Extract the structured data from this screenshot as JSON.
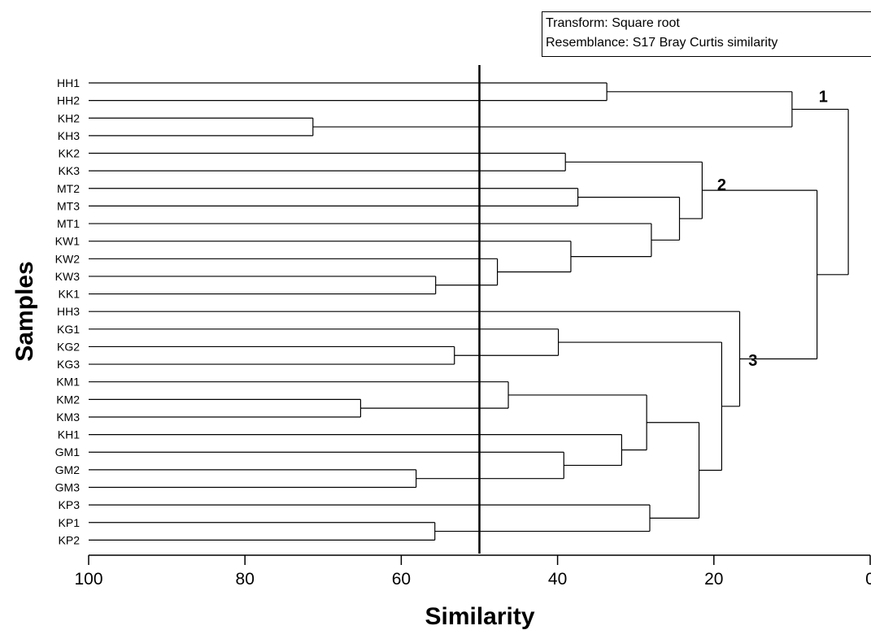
{
  "legend": {
    "transform": "Transform: Square root",
    "resemblance": "Resemblance: S17 Bray Curtis similarity"
  },
  "chart_data": {
    "type": "dendrogram",
    "xlabel": "Similarity",
    "ylabel": "Samples",
    "xlim": [
      100,
      0
    ],
    "xticks": [
      100,
      80,
      60,
      40,
      20,
      0
    ],
    "cut_line": 50,
    "leaves": [
      "HH1",
      "HH2",
      "KH2",
      "KH3",
      "KK2",
      "KK3",
      "MT2",
      "MT3",
      "MT1",
      "KW1",
      "KW2",
      "KW3",
      "KK1",
      "HH3",
      "KG1",
      "KG2",
      "KG3",
      "KM1",
      "KM2",
      "KM3",
      "KH1",
      "GM1",
      "GM2",
      "GM3",
      "KP3",
      "KP1",
      "KP2"
    ],
    "merges": [
      {
        "a": "HH1",
        "b": "HH2",
        "similarity": 33.7
      },
      {
        "a": "KH2",
        "b": "KH3",
        "similarity": 71.3
      },
      {
        "a": "HH1+HH2",
        "b": "KH2+KH3",
        "similarity": 10.0
      },
      {
        "a": "KK2",
        "b": "KK3",
        "similarity": 39.0
      },
      {
        "a": "MT2",
        "b": "MT3",
        "similarity": 37.4
      },
      {
        "a": "KW3",
        "b": "KK1",
        "similarity": 55.6
      },
      {
        "a": "KW2",
        "b": "KW3+KK1",
        "similarity": 47.7
      },
      {
        "a": "KW1",
        "b": "KW2+KW3+KK1",
        "similarity": 38.3
      },
      {
        "a": "MT1",
        "b": "KW1+KW2+KW3+KK1",
        "similarity": 28.0
      },
      {
        "a": "MT2+MT3",
        "b": "MT1+KW1+KW2+KW3+KK1",
        "similarity": 24.4
      },
      {
        "a": "KK2+KK3",
        "b": "MT2..KK1",
        "similarity": 21.5
      },
      {
        "a": "KG2",
        "b": "KG3",
        "similarity": 53.2
      },
      {
        "a": "KG1",
        "b": "KG2+KG3",
        "similarity": 39.9
      },
      {
        "a": "KM2",
        "b": "KM3",
        "similarity": 65.2
      },
      {
        "a": "KM1",
        "b": "KM2+KM3",
        "similarity": 46.3
      },
      {
        "a": "GM2",
        "b": "GM3",
        "similarity": 58.1
      },
      {
        "a": "GM1",
        "b": "GM2+GM3",
        "similarity": 39.2
      },
      {
        "a": "KH1",
        "b": "GM1+GM2+GM3",
        "similarity": 31.8
      },
      {
        "a": "KM1+KM2+KM3",
        "b": "KH1+GM1+GM2+GM3",
        "similarity": 28.6
      },
      {
        "a": "KP1",
        "b": "KP2",
        "similarity": 55.7
      },
      {
        "a": "KP3",
        "b": "KP1+KP2",
        "similarity": 28.2
      },
      {
        "a": "KM1..GM3",
        "b": "KP3+KP1+KP2",
        "similarity": 21.9
      },
      {
        "a": "KG1+KG2+KG3",
        "b": "KM1..KP2",
        "similarity": 19.0
      },
      {
        "a": "HH3",
        "b": "KG1..KP2",
        "similarity": 16.7
      },
      {
        "a": "KK2..KK1",
        "b": "HH3..KP2",
        "similarity": 6.8
      },
      {
        "a": "HH1..KH3",
        "b": "KK2..KP2",
        "similarity": 2.8
      }
    ],
    "cluster_labels": [
      {
        "text": "1",
        "similarity": 6.0,
        "after_leaf": "HH2"
      },
      {
        "text": "2",
        "similarity": 19.0,
        "after_leaf": "MT2"
      },
      {
        "text": "3",
        "similarity": 15.0,
        "after_leaf": "KG3"
      }
    ]
  }
}
